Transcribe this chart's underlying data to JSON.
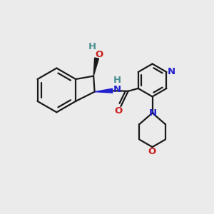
{
  "bg_color": "#ebebeb",
  "bond_color": "#1a1a1a",
  "n_color": "#2020cc",
  "o_color": "#cc2020",
  "teal_color": "#4a8f8f",
  "line_width": 1.6,
  "fig_size": [
    3.0,
    3.0
  ],
  "dpi": 100,
  "xlim": [
    0,
    10
  ],
  "ylim": [
    0,
    10
  ]
}
